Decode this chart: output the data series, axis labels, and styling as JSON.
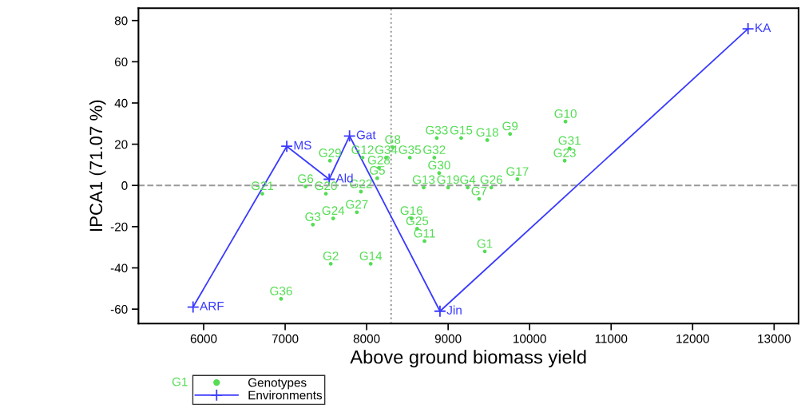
{
  "chart_data": {
    "type": "scatter",
    "xlabel": "Above ground biomass yield",
    "ylabel": "IPCA1 (71.07 %)",
    "xlim": [
      5200,
      13300
    ],
    "ylim": [
      -67,
      86
    ],
    "xticks": [
      6000,
      7000,
      8000,
      9000,
      10000,
      11000,
      12000,
      13000
    ],
    "yticks": [
      -60,
      -40,
      -20,
      0,
      20,
      40,
      60,
      80
    ],
    "grid": false,
    "legend": "bottom left",
    "ref_lines": [
      {
        "axis": "x",
        "value": 8300,
        "color": "#999999",
        "line_style": "dotted"
      },
      {
        "axis": "y",
        "value": 0,
        "color": "#999999",
        "line_style": "dashed"
      }
    ],
    "series": [
      {
        "name": "Genotypes",
        "marker": "circle",
        "color": "#55dd55",
        "x": [
          9450,
          7560,
          7340,
          9240,
          8130,
          7250,
          9380,
          8320,
          9760,
          10440,
          8710,
          7950,
          8700,
          8050,
          9160,
          8550,
          9850,
          9480,
          9000,
          7500,
          6720,
          7930,
          10430,
          7590,
          8620,
          9530,
          7880,
          8150,
          7550,
          8890,
          10490,
          8830,
          8860,
          8240,
          8530,
          6950
        ],
        "values": [
          -32,
          -38,
          -19,
          -1,
          3.5,
          -0.5,
          -6.5,
          18.5,
          25,
          31,
          -27,
          13.5,
          -1,
          -38,
          23,
          -16,
          3,
          22,
          -1,
          -4,
          -4,
          -3,
          12,
          -16,
          -21,
          -1,
          -13,
          8.5,
          12,
          6,
          18,
          13.5,
          23,
          13.5,
          13.5,
          -55
        ],
        "value_labels": [
          "G1",
          "G2",
          "G3",
          "G4",
          "G5",
          "G6",
          "G7",
          "G8",
          "G9",
          "G10",
          "G11",
          "G12",
          "G13",
          "G14",
          "G15",
          "G16",
          "G17",
          "G18",
          "G19",
          "G20",
          "G21",
          "G22",
          "G23",
          "G24",
          "G25",
          "G26",
          "G27",
          "G28",
          "G29",
          "G30",
          "G31",
          "G32",
          "G33",
          "G34",
          "G35",
          "G36"
        ]
      },
      {
        "name": "Environments",
        "type": "line",
        "marker": "cross",
        "line_style": "solid",
        "color": "#3a3aff",
        "x": [
          5870,
          7020,
          7540,
          7790,
          8900,
          12680
        ],
        "values": [
          -59,
          19,
          3,
          24,
          -61,
          76
        ],
        "value_labels": [
          "ARF",
          "MS",
          "Ald",
          "Gat",
          "Jin",
          "KA"
        ]
      }
    ]
  }
}
